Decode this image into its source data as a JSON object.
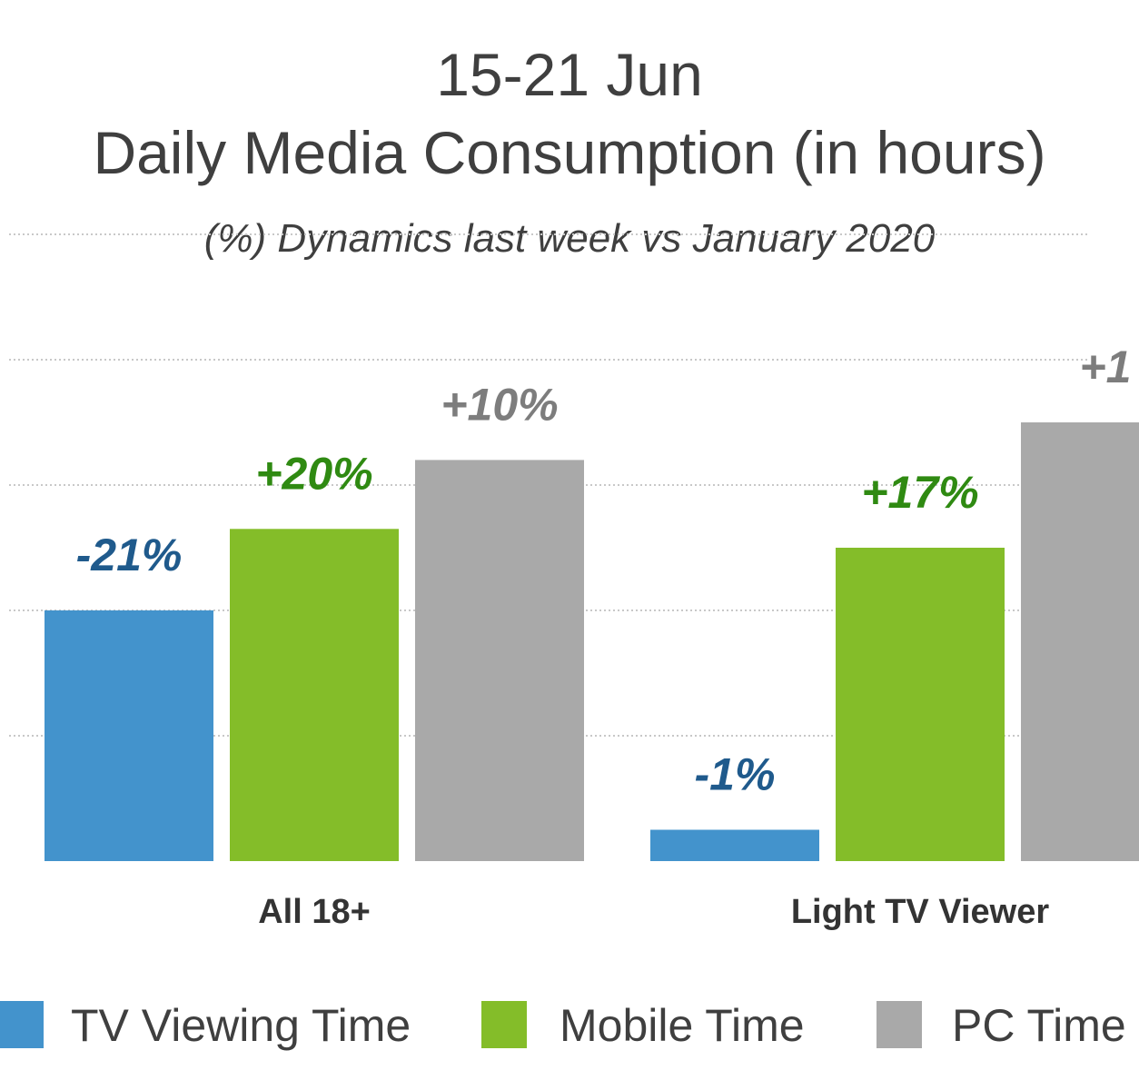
{
  "chart_data": {
    "type": "bar",
    "title": "15-21 Jun",
    "subtitle_title": "Daily Media Consumption (in hours)",
    "subtitle": "(%) Dynamics last week  vs January 2020",
    "categories": [
      "All 18+",
      "Light TV Viewer"
    ],
    "series": [
      {
        "name": "TV Viewing Time",
        "color": "#4393cc",
        "label_color": "#1f5a8c",
        "values": [
          2.0,
          0.25
        ],
        "labels": [
          "-21%",
          "-1%"
        ]
      },
      {
        "name": "Mobile Time",
        "color": "#84bd29",
        "label_color": "#2f8a12",
        "values": [
          2.65,
          2.5
        ],
        "labels": [
          "+20%",
          "+17%"
        ]
      },
      {
        "name": "PC Time",
        "color": "#a9a9a9",
        "label_color": "#7d7d7d",
        "values": [
          3.2,
          3.5
        ],
        "labels": [
          "+10%",
          "+1"
        ]
      }
    ],
    "ylim": [
      0,
      5
    ],
    "grid": true,
    "legend_position": "bottom"
  }
}
